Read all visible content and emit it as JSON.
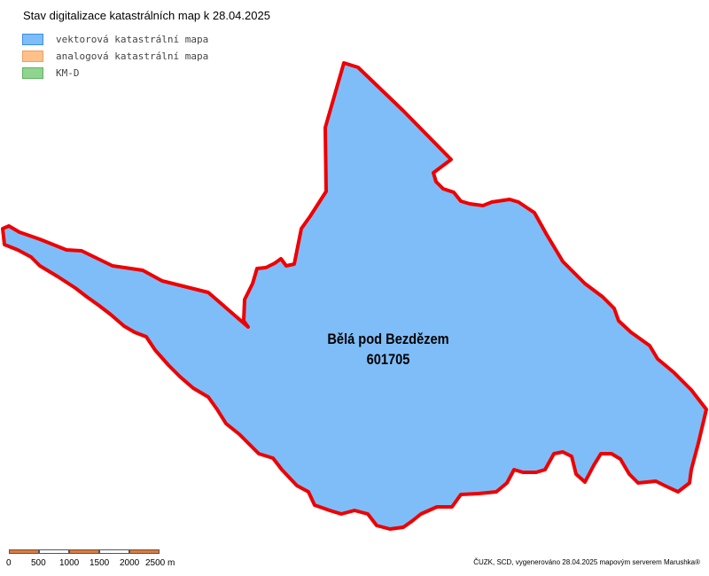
{
  "map": {
    "title": "Stav digitalizace katastrálních map k 28.04.2025",
    "area_name": "Bělá pod Bezdězem",
    "area_code": "601705",
    "status": "vektorová katastrální mapa",
    "fill_color": "#7fbdf8",
    "border_color": "#ee0000"
  },
  "legend": [
    {
      "label": "vektorová katastrální mapa",
      "fill": "#7fbdf8",
      "stroke": "#3d8fe3"
    },
    {
      "label": "analogová katastrální mapa",
      "fill": "#ffc08a",
      "stroke": "#f0a060"
    },
    {
      "label": "KM-D",
      "fill": "#8fd48f",
      "stroke": "#5fb45f"
    }
  ],
  "scalebar": {
    "ticks": [
      "0",
      "500",
      "1000",
      "1500",
      "2000",
      "2500 m"
    ],
    "colors": [
      "#e07a3c",
      "#ffffff",
      "#e07a3c",
      "#ffffff",
      "#e07a3c"
    ]
  },
  "credit": "ČUZK, SCD, vygenerováno 28.04.2025 mapovým serverem Marushka®"
}
